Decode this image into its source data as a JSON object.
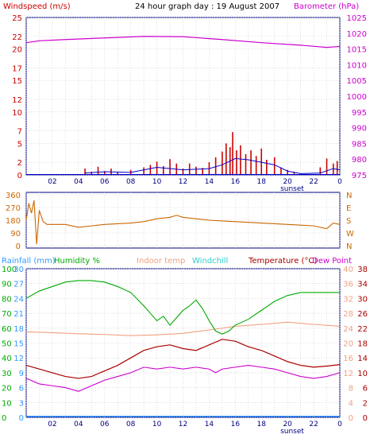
{
  "top_left_title": "Windspeed (m/s)",
  "top_center_title": "24 hour graph day : 19 August 2007",
  "top_right_title": "Barometer (hPa)",
  "bottom_legend": {
    "rainfall": "Rainfall (mm)",
    "humidity": "Humidity %",
    "indoor": "Indoor temp",
    "windchill": "Windchill",
    "temperature": "Temperature (°C)",
    "dewpoint": "Dew Point"
  },
  "x_ticks": [
    "02",
    "04",
    "06",
    "08",
    "10",
    "12",
    "14",
    "16",
    "18",
    "20",
    "22",
    "0"
  ],
  "sunset_label": "sunset",
  "colors": {
    "windspeed": "#cc0000",
    "gust": "#0000cc",
    "barometer": "#cc00cc",
    "direction": "#cc6600",
    "rainfall": "#3399ff",
    "humidity": "#00aa00",
    "indoor": "#f0a080",
    "windchill": "#33cccc",
    "temperature": "#aa0000",
    "dewpoint": "#cc00cc",
    "grid": "#c8c8c8",
    "axis": "#000080"
  },
  "chart_data": [
    {
      "type": "bar",
      "name": "windspeed",
      "left_axis": {
        "ticks": [
          0,
          2,
          5,
          7,
          10,
          12,
          15,
          17,
          20,
          22,
          25
        ],
        "range": [
          0,
          25
        ]
      },
      "right_axis": {
        "ticks": [
          975,
          980,
          985,
          990,
          995,
          1000,
          1005,
          1010,
          1015,
          1020,
          1025
        ],
        "range": [
          975,
          1025
        ]
      },
      "x_range_hours": [
        0,
        24
      ],
      "wind": [
        [
          4.5,
          1.0
        ],
        [
          5.0,
          0.5
        ],
        [
          5.5,
          1.3
        ],
        [
          6.0,
          0.6
        ],
        [
          6.5,
          1.0
        ],
        [
          7.0,
          0.4
        ],
        [
          8.0,
          0.8
        ],
        [
          9.0,
          1.2
        ],
        [
          9.5,
          1.6
        ],
        [
          10.0,
          2.1
        ],
        [
          10.5,
          1.4
        ],
        [
          11.0,
          2.5
        ],
        [
          11.5,
          1.8
        ],
        [
          12.0,
          1.0
        ],
        [
          12.5,
          1.8
        ],
        [
          13.0,
          1.3
        ],
        [
          13.5,
          1.1
        ],
        [
          14.0,
          2.0
        ],
        [
          14.5,
          2.8
        ],
        [
          15.0,
          3.7
        ],
        [
          15.3,
          5.0
        ],
        [
          15.6,
          4.4
        ],
        [
          15.8,
          6.8
        ],
        [
          16.1,
          3.9
        ],
        [
          16.4,
          4.7
        ],
        [
          16.8,
          3.3
        ],
        [
          17.2,
          3.9
        ],
        [
          17.6,
          3.0
        ],
        [
          18.0,
          4.2
        ],
        [
          18.4,
          2.4
        ],
        [
          19.0,
          2.8
        ],
        [
          19.5,
          1.2
        ],
        [
          20.0,
          0.8
        ],
        [
          20.5,
          0.5
        ],
        [
          22.5,
          1.2
        ],
        [
          23.0,
          2.6
        ],
        [
          23.5,
          1.8
        ],
        [
          23.8,
          2.2
        ]
      ],
      "gust_line": [
        [
          4.5,
          0.3
        ],
        [
          6.0,
          0.5
        ],
        [
          8.0,
          0.4
        ],
        [
          10.0,
          1.2
        ],
        [
          12.0,
          0.8
        ],
        [
          14.0,
          1.0
        ],
        [
          15.0,
          1.6
        ],
        [
          16.0,
          2.6
        ],
        [
          17.0,
          2.4
        ],
        [
          18.0,
          2.0
        ],
        [
          19.0,
          1.6
        ],
        [
          20.0,
          0.6
        ],
        [
          21.0,
          0.2
        ],
        [
          22.5,
          0.3
        ],
        [
          23.5,
          1.0
        ],
        [
          24.0,
          0.8
        ]
      ],
      "barometer": [
        [
          0,
          1017.0
        ],
        [
          1,
          1017.6
        ],
        [
          3,
          1018.0
        ],
        [
          6,
          1018.5
        ],
        [
          9,
          1019.0
        ],
        [
          12,
          1018.9
        ],
        [
          15,
          1018.0
        ],
        [
          18,
          1017.0
        ],
        [
          21,
          1016.2
        ],
        [
          23,
          1015.5
        ],
        [
          24,
          1015.8
        ]
      ]
    },
    {
      "type": "line",
      "name": "wind_direction",
      "left_axis": {
        "ticks": [
          0,
          90,
          180,
          270,
          360
        ],
        "range": [
          0,
          360
        ]
      },
      "right_axis_labels": [
        "N",
        "W",
        "S",
        "E",
        "N"
      ],
      "values": [
        [
          0,
          180
        ],
        [
          0.2,
          300
        ],
        [
          0.4,
          230
        ],
        [
          0.6,
          320
        ],
        [
          0.8,
          10
        ],
        [
          1.0,
          250
        ],
        [
          1.3,
          170
        ],
        [
          1.6,
          150
        ],
        [
          2,
          150
        ],
        [
          3,
          150
        ],
        [
          4,
          130
        ],
        [
          5,
          140
        ],
        [
          6,
          150
        ],
        [
          7,
          155
        ],
        [
          8,
          160
        ],
        [
          9,
          170
        ],
        [
          10,
          190
        ],
        [
          11,
          200
        ],
        [
          11.5,
          215
        ],
        [
          12,
          200
        ],
        [
          13,
          190
        ],
        [
          14,
          180
        ],
        [
          15,
          175
        ],
        [
          16,
          170
        ],
        [
          17,
          165
        ],
        [
          18,
          160
        ],
        [
          19,
          155
        ],
        [
          20,
          150
        ],
        [
          21,
          145
        ],
        [
          22,
          140
        ],
        [
          23,
          120
        ],
        [
          23.5,
          160
        ],
        [
          24,
          150
        ]
      ]
    },
    {
      "type": "line",
      "name": "temperature_humidity",
      "axes": {
        "rainfall": [
          0,
          3,
          6,
          9,
          12,
          15,
          18,
          21,
          24,
          27,
          30
        ],
        "humidity": [
          0,
          10,
          20,
          30,
          40,
          50,
          60,
          70,
          80,
          90,
          100
        ],
        "temperature": [
          0,
          4,
          8,
          12,
          16,
          20,
          24,
          28,
          32,
          36,
          40
        ],
        "right_outer": [
          0,
          2,
          6,
          10,
          14,
          18,
          22,
          26,
          30,
          34,
          38
        ]
      },
      "humidity": [
        [
          0,
          80
        ],
        [
          1,
          85
        ],
        [
          2,
          88
        ],
        [
          3,
          91
        ],
        [
          4,
          92
        ],
        [
          5,
          92
        ],
        [
          6,
          91
        ],
        [
          7,
          88
        ],
        [
          8,
          84
        ],
        [
          9,
          75
        ],
        [
          10,
          65
        ],
        [
          10.5,
          68
        ],
        [
          11,
          62
        ],
        [
          11.5,
          67
        ],
        [
          12,
          72
        ],
        [
          12.5,
          75
        ],
        [
          13,
          79
        ],
        [
          13.5,
          73
        ],
        [
          14,
          65
        ],
        [
          14.5,
          58
        ],
        [
          15,
          56
        ],
        [
          15.5,
          58
        ],
        [
          16,
          62
        ],
        [
          17,
          66
        ],
        [
          18,
          72
        ],
        [
          19,
          78
        ],
        [
          20,
          82
        ],
        [
          21,
          84
        ],
        [
          22,
          84
        ],
        [
          24,
          84
        ]
      ],
      "indoor_temp": [
        [
          0,
          23
        ],
        [
          2,
          22.8
        ],
        [
          4,
          22.5
        ],
        [
          6,
          22.3
        ],
        [
          8,
          22.0
        ],
        [
          10,
          22.2
        ],
        [
          12,
          22.6
        ],
        [
          14,
          23.5
        ],
        [
          16,
          24.5
        ],
        [
          18,
          25.0
        ],
        [
          20,
          25.6
        ],
        [
          22,
          25.0
        ],
        [
          24,
          24.5
        ]
      ],
      "temperature": [
        [
          0,
          14.0
        ],
        [
          1,
          13.0
        ],
        [
          2,
          12.0
        ],
        [
          3,
          11.0
        ],
        [
          4,
          10.5
        ],
        [
          5,
          11.0
        ],
        [
          6,
          12.5
        ],
        [
          7,
          14.0
        ],
        [
          8,
          16.0
        ],
        [
          9,
          18.0
        ],
        [
          10,
          19.0
        ],
        [
          11,
          19.5
        ],
        [
          12,
          18.5
        ],
        [
          13,
          18.0
        ],
        [
          14,
          19.5
        ],
        [
          15,
          21.0
        ],
        [
          16,
          20.5
        ],
        [
          17,
          19.0
        ],
        [
          18,
          18.0
        ],
        [
          19,
          16.5
        ],
        [
          20,
          15.0
        ],
        [
          21,
          14.0
        ],
        [
          22,
          13.5
        ],
        [
          23,
          13.8
        ],
        [
          24,
          14.2
        ]
      ],
      "dew_point": [
        [
          0,
          10.5
        ],
        [
          1,
          9.0
        ],
        [
          2,
          8.5
        ],
        [
          3,
          8.0
        ],
        [
          4,
          7.0
        ],
        [
          5,
          8.5
        ],
        [
          6,
          10.0
        ],
        [
          7,
          11.0
        ],
        [
          8,
          12.0
        ],
        [
          9,
          13.5
        ],
        [
          10,
          13.0
        ],
        [
          11,
          13.5
        ],
        [
          12,
          13.0
        ],
        [
          13,
          13.5
        ],
        [
          14,
          13.0
        ],
        [
          14.5,
          12.0
        ],
        [
          15,
          13.0
        ],
        [
          16,
          13.5
        ],
        [
          17,
          14.0
        ],
        [
          18,
          13.5
        ],
        [
          19,
          13.0
        ],
        [
          20,
          12.0
        ],
        [
          21,
          11.0
        ],
        [
          22,
          10.5
        ],
        [
          23,
          11.0
        ],
        [
          24,
          12.0
        ]
      ],
      "rainfall": [
        [
          0,
          0.2
        ],
        [
          24,
          0.2
        ]
      ]
    }
  ]
}
